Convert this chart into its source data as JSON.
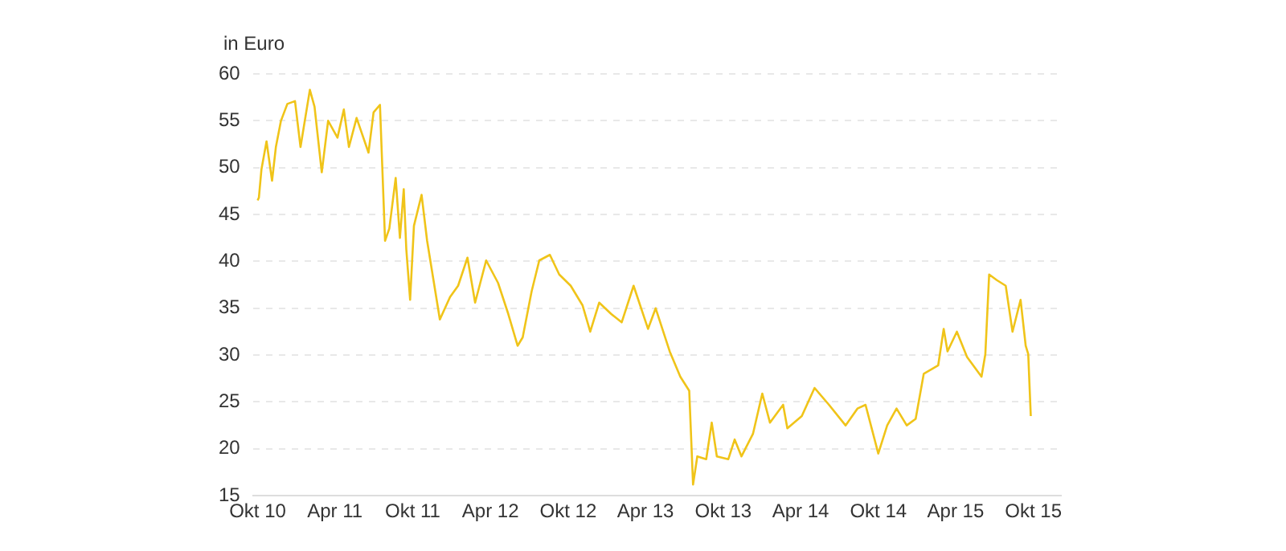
{
  "chart_data": {
    "type": "line",
    "ylabel": "in Euro",
    "x": [
      "2010-10-01",
      "2010-10-04",
      "2010-10-10",
      "2010-10-22",
      "2010-11-04",
      "2010-11-13",
      "2010-11-25",
      "2010-12-10",
      "2010-12-28",
      "2011-01-10",
      "2011-02-01",
      "2011-02-12",
      "2011-03-01",
      "2011-03-16",
      "2011-04-07",
      "2011-04-22",
      "2011-05-04",
      "2011-05-22",
      "2011-06-19",
      "2011-07-01",
      "2011-07-16",
      "2011-07-28",
      "2011-08-07",
      "2011-08-22",
      "2011-09-01",
      "2011-09-10",
      "2011-09-16",
      "2011-09-25",
      "2011-10-04",
      "2011-10-22",
      "2011-11-04",
      "2011-11-19",
      "2011-12-04",
      "2011-12-28",
      "2012-01-16",
      "2012-02-07",
      "2012-02-25",
      "2012-03-22",
      "2012-04-19",
      "2012-05-13",
      "2012-06-04",
      "2012-06-16",
      "2012-07-07",
      "2012-07-25",
      "2012-08-19",
      "2012-09-10",
      "2012-10-07",
      "2012-11-04",
      "2012-11-22",
      "2012-12-13",
      "2013-01-10",
      "2013-02-04",
      "2013-03-04",
      "2013-04-07",
      "2013-04-25",
      "2013-05-28",
      "2013-06-22",
      "2013-07-13",
      "2013-07-22",
      "2013-08-01",
      "2013-08-22",
      "2013-09-04",
      "2013-09-16",
      "2013-10-13",
      "2013-10-28",
      "2013-11-13",
      "2013-12-10",
      "2014-01-01",
      "2014-01-19",
      "2014-02-19",
      "2014-03-01",
      "2014-04-04",
      "2014-05-04",
      "2014-06-07",
      "2014-07-16",
      "2014-08-13",
      "2014-09-01",
      "2014-10-01",
      "2014-10-22",
      "2014-11-13",
      "2014-12-07",
      "2014-12-28",
      "2015-01-16",
      "2015-02-19",
      "2015-03-04",
      "2015-03-13",
      "2015-04-04",
      "2015-04-28",
      "2015-06-01",
      "2015-06-10",
      "2015-06-19",
      "2015-07-07",
      "2015-07-28",
      "2015-08-13",
      "2015-09-01",
      "2015-09-13",
      "2015-09-19",
      "2015-09-25"
    ],
    "series": [
      {
        "color": "#f0c419",
        "values": [
          46.5,
          46.8,
          49.8,
          52.8,
          48.6,
          52.2,
          55,
          56.8,
          57.1,
          52.2,
          58.3,
          56.5,
          49.5,
          55,
          53.2,
          56.2,
          52.2,
          55.3,
          51.6,
          55.9,
          56.7,
          42.2,
          43.5,
          48.9,
          42.5,
          47.7,
          41.3,
          35.9,
          43.8,
          47.1,
          42.2,
          38,
          33.8,
          36.2,
          37.4,
          40.4,
          35.6,
          40.1,
          37.7,
          34.4,
          31,
          31.9,
          36.8,
          40.1,
          40.7,
          38.6,
          37.4,
          35.3,
          32.5,
          35.6,
          34.4,
          33.5,
          37.4,
          32.8,
          35,
          30.4,
          27.7,
          26.2,
          16.2,
          19.2,
          18.9,
          22.8,
          19.2,
          18.9,
          21,
          19.2,
          21.6,
          25.9,
          22.8,
          24.7,
          22.2,
          23.5,
          26.5,
          24.7,
          22.5,
          24.3,
          24.7,
          19.5,
          22.5,
          24.3,
          22.5,
          23.2,
          28,
          28.9,
          32.8,
          30.4,
          32.5,
          29.8,
          27.7,
          30.1,
          38.6,
          38,
          37.4,
          32.5,
          35.9,
          31,
          30.1,
          23.5
        ]
      }
    ],
    "xlim": [
      "2010-09-20",
      "2015-12-05"
    ],
    "xticks": [
      {
        "value": "2010-10",
        "label": "Okt 10"
      },
      {
        "value": "2011-04",
        "label": "Apr 11"
      },
      {
        "value": "2011-10",
        "label": "Okt 11"
      },
      {
        "value": "2012-04",
        "label": "Apr 12"
      },
      {
        "value": "2012-10",
        "label": "Okt 12"
      },
      {
        "value": "2013-04",
        "label": "Apr 13"
      },
      {
        "value": "2013-10",
        "label": "Okt 13"
      },
      {
        "value": "2014-04",
        "label": "Apr 14"
      },
      {
        "value": "2014-10",
        "label": "Okt 14"
      },
      {
        "value": "2015-04",
        "label": "Apr 15"
      },
      {
        "value": "2015-10",
        "label": "Okt 15"
      }
    ],
    "ylim": [
      15,
      60
    ],
    "yticks": [
      15,
      20,
      25,
      30,
      35,
      40,
      45,
      50,
      55,
      60
    ],
    "grid": "y",
    "legend": false,
    "marker": "none",
    "line_style": "solid"
  }
}
